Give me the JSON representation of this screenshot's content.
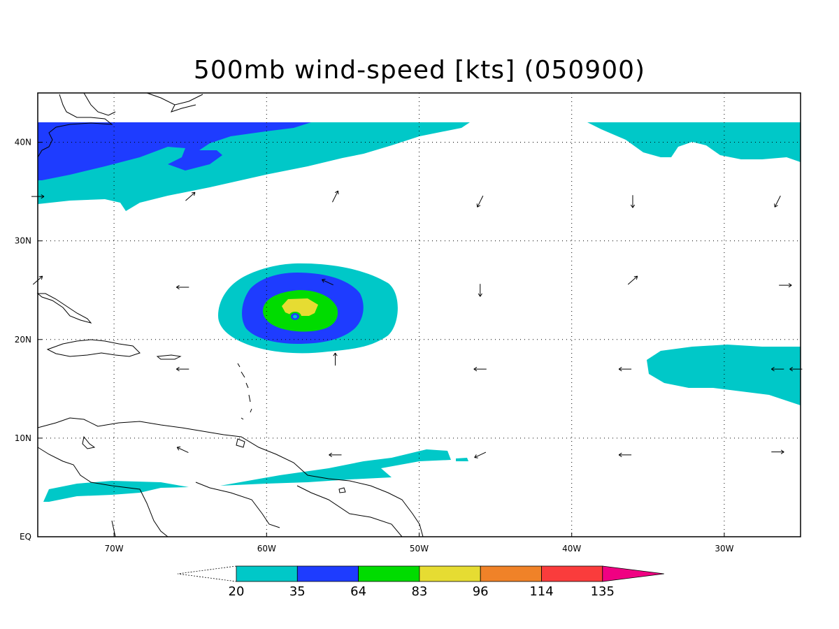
{
  "title": "500mb wind-speed [kts] (050900)",
  "axes": {
    "lon_ticks": [
      "70W",
      "60W",
      "50W",
      "40W",
      "30W"
    ],
    "lat_ticks": [
      "EQ",
      "10N",
      "20N",
      "30N",
      "40N"
    ],
    "lon_range": [
      -75,
      -25
    ],
    "lat_range": [
      0,
      45
    ],
    "grid": "dotted"
  },
  "colorbar": {
    "labels": [
      "20",
      "35",
      "64",
      "83",
      "96",
      "114",
      "135"
    ],
    "colors": [
      "#00c8c8",
      "#1e3cff",
      "#00dc00",
      "#e6dc32",
      "#f08228",
      "#fa3c3c",
      "#f00082"
    ]
  },
  "fill_colors": {
    "c20": "#00c8c8",
    "c35": "#1e3cff",
    "c64": "#00dc00",
    "c83": "#e6dc32"
  },
  "wind_vectors": [
    {
      "lon": -75,
      "lat": 34.5,
      "dir": "E"
    },
    {
      "lon": -65,
      "lat": 34.5,
      "dir": "NE"
    },
    {
      "lon": -55.5,
      "lat": 34.5,
      "dir": "NNE"
    },
    {
      "lon": -46,
      "lat": 34,
      "dir": "SSW"
    },
    {
      "lon": -36,
      "lat": 34,
      "dir": "S"
    },
    {
      "lon": -26.5,
      "lat": 34,
      "dir": "SSW"
    },
    {
      "lon": -75,
      "lat": 26,
      "dir": "NE"
    },
    {
      "lon": -65.5,
      "lat": 25.3,
      "dir": "W"
    },
    {
      "lon": -56,
      "lat": 25.8,
      "dir": "WNW"
    },
    {
      "lon": -46,
      "lat": 25,
      "dir": "S"
    },
    {
      "lon": -36,
      "lat": 26,
      "dir": "NE"
    },
    {
      "lon": -26,
      "lat": 25.5,
      "dir": "E"
    },
    {
      "lon": -65.5,
      "lat": 17,
      "dir": "W"
    },
    {
      "lon": -55.5,
      "lat": 18,
      "dir": "N"
    },
    {
      "lon": -46,
      "lat": 17,
      "dir": "W"
    },
    {
      "lon": -36.5,
      "lat": 17,
      "dir": "W"
    },
    {
      "lon": -26.5,
      "lat": 17,
      "dir": "W"
    },
    {
      "lon": -25.3,
      "lat": 17,
      "dir": "W"
    },
    {
      "lon": -65.5,
      "lat": 8.8,
      "dir": "WNW"
    },
    {
      "lon": -55.5,
      "lat": 8.3,
      "dir": "W"
    },
    {
      "lon": -46,
      "lat": 8.3,
      "dir": "WSW"
    },
    {
      "lon": -36.5,
      "lat": 8.3,
      "dir": "W"
    },
    {
      "lon": -26.5,
      "lat": 8.6,
      "dir": "E"
    }
  ]
}
